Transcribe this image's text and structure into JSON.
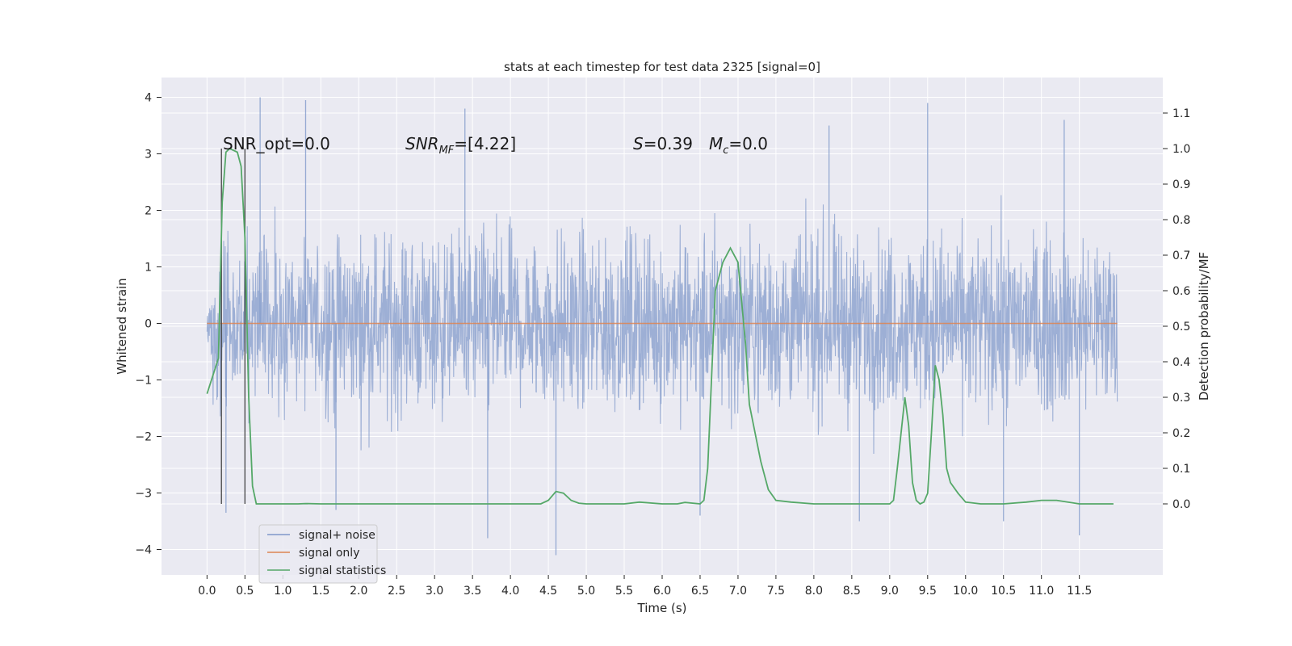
{
  "chart_data": {
    "type": "line",
    "title": "stats at each timestep for test data 2325 [signal=0]",
    "xlabel": "Time (s)",
    "ylabel": "Whitened strain",
    "y2label": "Detection probability/MF",
    "xlim": [
      -0.6,
      12.6
    ],
    "ylim": [
      -4.45,
      4.35
    ],
    "y2lim": [
      -0.2,
      1.2
    ],
    "x_ticks": [
      "0.0",
      "0.5",
      "1.0",
      "1.5",
      "2.0",
      "2.5",
      "3.0",
      "3.5",
      "4.0",
      "4.5",
      "5.0",
      "5.5",
      "6.0",
      "6.5",
      "7.0",
      "7.5",
      "8.0",
      "8.5",
      "9.0",
      "9.5",
      "10.0",
      "10.5",
      "11.0",
      "11.5"
    ],
    "y_ticks": [
      "4",
      "3",
      "2",
      "1",
      "0",
      "−1",
      "−2",
      "−3",
      "−4"
    ],
    "y2_ticks": [
      "1.1",
      "1.0",
      "0.9",
      "0.8",
      "0.7",
      "0.6",
      "0.5",
      "0.4",
      "0.3",
      "0.2",
      "0.1",
      "0.0"
    ],
    "grid": true,
    "legend_position": "lower-left",
    "annotations": {
      "snr_opt": "SNR_opt=0.0",
      "snr_mf_sym": "SNR",
      "snr_mf_sub": "MF",
      "snr_mf_val": "=[4.22]",
      "s_sym": "S",
      "s_val": "=0.39",
      "mc_sym": "M",
      "mc_sub": "c",
      "mc_val": "=0.0"
    },
    "markers_x": [
      0.19,
      0.5
    ],
    "series": [
      {
        "name": "signal+ noise",
        "color": "#7f98c9",
        "x_range": [
          0.0,
          12.0
        ],
        "envelope": "noise band approximately ±1.2 dense, spikes up to about ±4 (max 4.0 near x=0.7, min -4.1 near x=4.6)",
        "spikes": [
          {
            "x": 0.7,
            "y": 4.0
          },
          {
            "x": 1.3,
            "y": 3.95
          },
          {
            "x": 3.4,
            "y": 3.8
          },
          {
            "x": 9.5,
            "y": 3.9
          },
          {
            "x": 11.3,
            "y": 3.6
          },
          {
            "x": 8.2,
            "y": 3.5
          },
          {
            "x": 0.25,
            "y": -3.35
          },
          {
            "x": 1.7,
            "y": -3.3
          },
          {
            "x": 3.7,
            "y": -3.8
          },
          {
            "x": 4.6,
            "y": -4.1
          },
          {
            "x": 6.5,
            "y": -3.4
          },
          {
            "x": 8.6,
            "y": -3.5
          },
          {
            "x": 10.5,
            "y": -3.5
          },
          {
            "x": 11.5,
            "y": -3.75
          }
        ]
      },
      {
        "name": "signal only",
        "color": "#dd8452",
        "x": [
          0.0,
          12.0
        ],
        "y": [
          0.0,
          0.0
        ]
      },
      {
        "name": "signal statistics",
        "color": "#55a868",
        "axis": "right",
        "x": [
          0.0,
          0.15,
          0.2,
          0.25,
          0.3,
          0.4,
          0.45,
          0.5,
          0.55,
          0.6,
          0.65,
          0.7,
          1.0,
          1.2,
          1.3,
          1.5,
          2.0,
          3.0,
          4.0,
          4.4,
          4.5,
          4.6,
          4.7,
          4.8,
          4.9,
          5.0,
          5.5,
          5.7,
          6.0,
          6.2,
          6.3,
          6.5,
          6.55,
          6.6,
          6.7,
          6.8,
          6.9,
          7.0,
          7.1,
          7.15,
          7.3,
          7.4,
          7.5,
          7.7,
          8.0,
          8.5,
          9.0,
          9.05,
          9.1,
          9.2,
          9.25,
          9.3,
          9.35,
          9.4,
          9.45,
          9.5,
          9.55,
          9.6,
          9.65,
          9.7,
          9.75,
          9.8,
          9.9,
          10.0,
          10.2,
          10.5,
          10.8,
          11.0,
          11.2,
          11.5,
          11.8,
          11.95
        ],
        "y": [
          0.31,
          0.41,
          0.85,
          0.99,
          1.0,
          0.99,
          0.95,
          0.75,
          0.3,
          0.05,
          0.0,
          0.0,
          0.0,
          0.0,
          0.001,
          0.0,
          0.0,
          0.0,
          0.0,
          0.0,
          0.01,
          0.035,
          0.03,
          0.01,
          0.002,
          0.0,
          0.0,
          0.005,
          0.0,
          0.0,
          0.004,
          0.0,
          0.01,
          0.1,
          0.6,
          0.68,
          0.72,
          0.68,
          0.45,
          0.28,
          0.12,
          0.04,
          0.01,
          0.005,
          0.0,
          0.0,
          0.0,
          0.01,
          0.1,
          0.3,
          0.22,
          0.06,
          0.01,
          0.0,
          0.005,
          0.03,
          0.2,
          0.39,
          0.35,
          0.25,
          0.1,
          0.06,
          0.03,
          0.005,
          0.0,
          0.0,
          0.005,
          0.01,
          0.01,
          0.0,
          0.0,
          0.0
        ]
      }
    ]
  }
}
